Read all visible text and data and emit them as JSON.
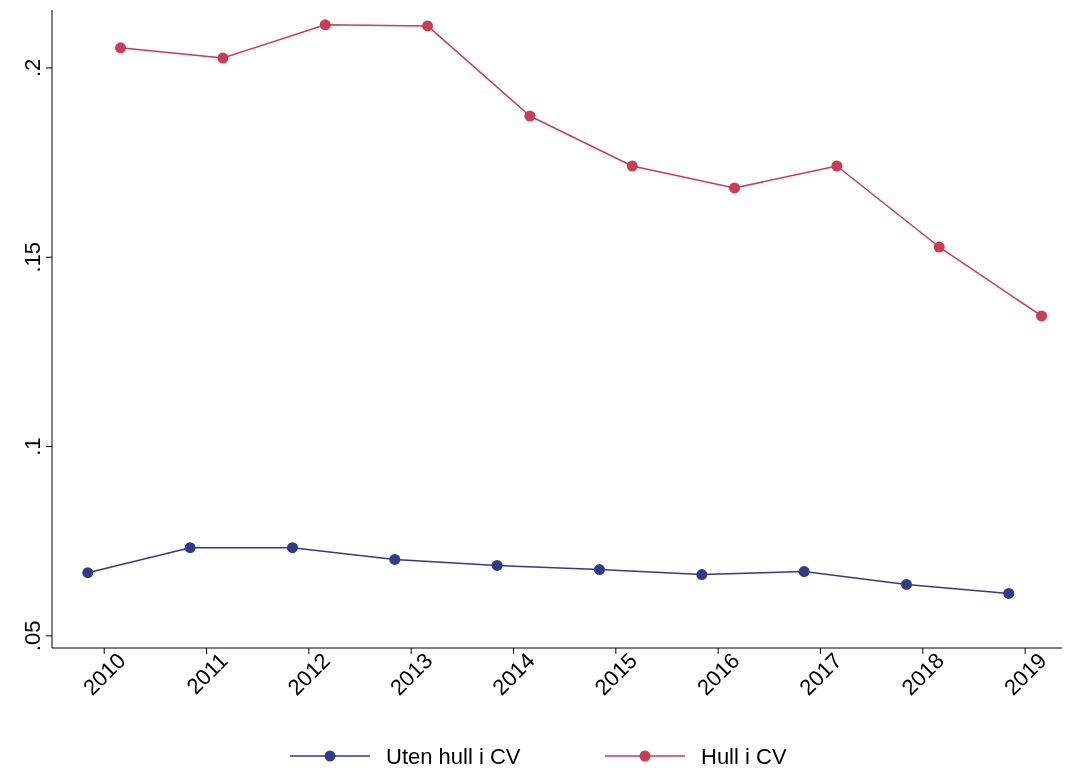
{
  "chart_data": {
    "type": "line",
    "xlim": [
      2009.49,
      2019.36
    ],
    "xticks": [
      2010,
      2011,
      2012,
      2013,
      2014,
      2015,
      2016,
      2017,
      2018,
      2019
    ],
    "ylim": [
      0.0468,
      0.2153
    ],
    "yticks": [
      {
        "value": 0.05,
        "label": ".05"
      },
      {
        "value": 0.1,
        "label": ".1"
      },
      {
        "value": 0.15,
        "label": ".15"
      },
      {
        "value": 0.2,
        "label": ".2"
      }
    ],
    "grid": false,
    "legend": "bottom",
    "marker": "circle",
    "line_style": "solid",
    "series": [
      {
        "name": "Uten hull i CV",
        "color": "#2e3c8a",
        "x": [
          2009.84,
          2010.84,
          2011.84,
          2012.84,
          2013.84,
          2014.84,
          2015.84,
          2016.84,
          2017.84,
          2018.84
        ],
        "values": [
          0.0667,
          0.0733,
          0.0733,
          0.0702,
          0.0686,
          0.0675,
          0.0662,
          0.067,
          0.0636,
          0.0612
        ]
      },
      {
        "name": "Hull i CV",
        "color": "#cc3c55",
        "x": [
          2010.16,
          2011.16,
          2012.16,
          2013.16,
          2014.16,
          2015.16,
          2016.16,
          2017.16,
          2018.16,
          2019.16
        ],
        "values": [
          0.2053,
          0.2026,
          0.2114,
          0.2111,
          0.1873,
          0.1741,
          0.1683,
          0.1741,
          0.1527,
          0.1345
        ]
      }
    ]
  }
}
